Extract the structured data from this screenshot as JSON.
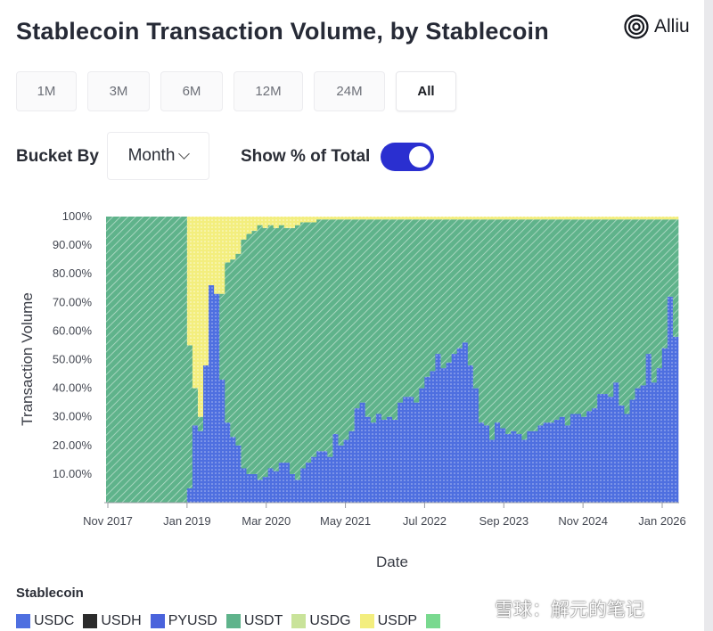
{
  "title": "Stablecoin Transaction Volume, by Stablecoin",
  "logo": {
    "text": "Alliu"
  },
  "ranges": [
    "1M",
    "3M",
    "6M",
    "12M",
    "24M",
    "All"
  ],
  "active_range": "All",
  "controls": {
    "bucket_label": "Bucket By",
    "bucket_value": "Month",
    "show_pct_label": "Show % of Total",
    "show_pct_on": true
  },
  "legend_title": "Stablecoin",
  "watermark": "雪球：解元的笔记",
  "colors": {
    "USDC": "#4e6fe0",
    "USDH": "#2b2b2b",
    "PYUSD": "#4a63dc",
    "USDT": "#5fb38b",
    "USDG": "#c9e39a",
    "USDP": "#f3ee7e",
    "USDS": "#79d98f"
  },
  "chart_data": {
    "type": "area",
    "stacked_percent": true,
    "xlabel": "Date",
    "ylabel": "Transaction Volume",
    "x_ticks": [
      "Nov 2017",
      "Jan 2019",
      "Mar 2020",
      "May 2021",
      "Jul 2022",
      "Sep 2023",
      "Nov 2024",
      "Jan 2026"
    ],
    "y_ticks": [
      "10.00%",
      "20.00%",
      "30.00%",
      "40.00%",
      "50.00%",
      "60.00%",
      "70.00%",
      "80.00%",
      "90.00%",
      "100%"
    ],
    "ylim": [
      0,
      100
    ],
    "series": [
      {
        "name": "USDC",
        "values": [
          0,
          0,
          0,
          0,
          0,
          0,
          0,
          0,
          0,
          0,
          0,
          0,
          0,
          0,
          0,
          5,
          27,
          25,
          48,
          76,
          73,
          43,
          28,
          23,
          20,
          12,
          10,
          10,
          8,
          9,
          12,
          11,
          14,
          14,
          10,
          8,
          12,
          14,
          16,
          18,
          18,
          16,
          24,
          20,
          22,
          25,
          33,
          35,
          30,
          28,
          31,
          29,
          30,
          29,
          35,
          37,
          37,
          35,
          40,
          44,
          46,
          52,
          47,
          49,
          52,
          54,
          56,
          48,
          40,
          28,
          27,
          22,
          28,
          26,
          24,
          25,
          24,
          22,
          25,
          25,
          27,
          28,
          28,
          29,
          30,
          27,
          31,
          31,
          30,
          32,
          33,
          38,
          38,
          37,
          42,
          34,
          31,
          36,
          40,
          41,
          52,
          42,
          47,
          54,
          72,
          58
        ]
      },
      {
        "name": "USDT",
        "values": [
          100,
          100,
          100,
          100,
          100,
          100,
          100,
          100,
          100,
          100,
          100,
          100,
          100,
          100,
          100,
          50,
          13,
          5,
          0,
          0,
          0,
          30,
          56,
          62,
          67,
          80,
          84,
          85,
          89,
          87,
          85,
          85,
          83,
          82,
          86,
          89,
          86,
          84,
          82,
          81,
          81,
          83,
          75,
          79,
          77,
          74,
          66,
          64,
          69,
          71,
          68,
          70,
          69,
          70,
          64,
          62,
          62,
          64,
          59,
          55,
          53,
          47,
          52,
          50,
          47,
          45,
          43,
          51,
          59,
          71,
          72,
          77,
          71,
          73,
          75,
          74,
          75,
          77,
          74,
          74,
          72,
          71,
          71,
          70,
          69,
          72,
          68,
          68,
          69,
          67,
          66,
          61,
          61,
          62,
          57,
          65,
          68,
          63,
          59,
          58,
          47,
          57,
          52,
          45,
          27,
          41
        ]
      },
      {
        "name": "USDP",
        "values": [
          0,
          0,
          0,
          0,
          0,
          0,
          0,
          0,
          0,
          0,
          0,
          0,
          0,
          0,
          0,
          45,
          60,
          70,
          52,
          24,
          27,
          27,
          16,
          15,
          13,
          8,
          6,
          5,
          3,
          4,
          3,
          4,
          3,
          4,
          4,
          3,
          2,
          2,
          2,
          1,
          1,
          1,
          1,
          1,
          1,
          1,
          1,
          1,
          1,
          1,
          1,
          1,
          1,
          1,
          1,
          1,
          1,
          1,
          1,
          1,
          1,
          1,
          1,
          1,
          1,
          1,
          1,
          1,
          1,
          1,
          1,
          1,
          1,
          1,
          1,
          1,
          1,
          1,
          1,
          1,
          1,
          1,
          1,
          1,
          1,
          1,
          1,
          1,
          1,
          1,
          1,
          1,
          1,
          1,
          1,
          1,
          1,
          1,
          1,
          1,
          1,
          1,
          1,
          1,
          1,
          1
        ]
      }
    ]
  }
}
